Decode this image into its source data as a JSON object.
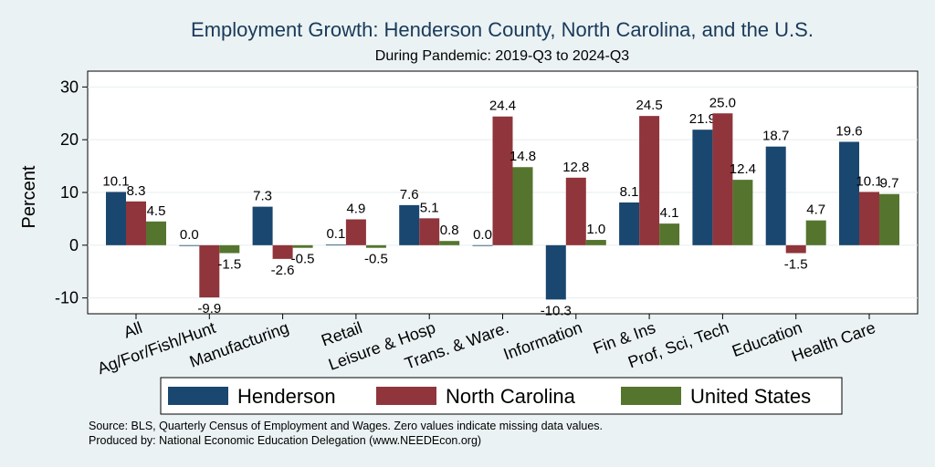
{
  "chart_data": {
    "type": "bar",
    "title": "Employment Growth: Henderson County, North Carolina, and the U.S.",
    "subtitle": "During Pandemic: 2019-Q3 to 2024-Q3",
    "ylabel": "Percent",
    "xlabel": "",
    "ylim": [
      -13,
      33
    ],
    "yticks": [
      -10,
      0,
      10,
      20,
      30
    ],
    "categories": [
      "All",
      "Ag/For/Fish/Hunt",
      "Manufacturing",
      "Retail",
      "Leisure & Hosp",
      "Trans. & Ware.",
      "Information",
      "Fin & Ins",
      "Prof, Sci, Tech",
      "Education",
      "Health Care"
    ],
    "series": [
      {
        "name": "Henderson",
        "color": "#1a476f",
        "values": [
          10.1,
          0.0,
          7.3,
          0.1,
          7.6,
          0.0,
          -10.3,
          8.1,
          21.9,
          18.7,
          19.6
        ]
      },
      {
        "name": "North Carolina",
        "color": "#90353b",
        "values": [
          8.3,
          -9.9,
          -2.6,
          4.9,
          5.1,
          24.4,
          12.8,
          24.5,
          25.0,
          -1.5,
          10.1
        ]
      },
      {
        "name": "United States",
        "color": "#55752f",
        "values": [
          4.5,
          -1.5,
          -0.5,
          -0.5,
          0.8,
          14.8,
          1.0,
          4.1,
          12.4,
          4.7,
          9.7
        ]
      }
    ],
    "grid": true,
    "legend_position": "bottom"
  },
  "footer": {
    "source": "Source: BLS, Quarterly Census of Employment and Wages. Zero values indicate missing data values.",
    "produced": "Produced by: National Economic Education Delegation (www.NEEDEcon.org)"
  }
}
